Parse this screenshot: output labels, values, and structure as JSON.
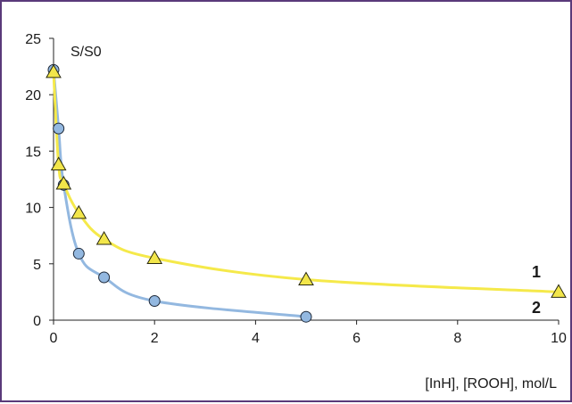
{
  "chart_data": {
    "type": "line",
    "title": "",
    "ylabel": "S/S0",
    "xlabel": "[InH], [ROOH], mol/L",
    "xlim": [
      0,
      10
    ],
    "ylim": [
      0,
      25
    ],
    "xticks": [
      "0",
      "2",
      "4",
      "6",
      "8",
      "10"
    ],
    "yticks": [
      "0",
      "5",
      "10",
      "15",
      "20",
      "25"
    ],
    "grid": false,
    "series": [
      {
        "name": "1",
        "color": "#f5e94a",
        "marker": "triangle",
        "marker_fill": "#f2e64a",
        "x": [
          0,
          0.1,
          0.2,
          0.5,
          1,
          2,
          5,
          10
        ],
        "y": [
          22,
          13.8,
          12.1,
          9.5,
          7.2,
          5.5,
          3.6,
          2.5
        ]
      },
      {
        "name": "2",
        "color": "#93b8e0",
        "marker": "circle",
        "marker_fill": "#93b8e0",
        "x": [
          0,
          0.1,
          0.2,
          0.5,
          1,
          2,
          5
        ],
        "y": [
          22.2,
          17,
          12,
          5.9,
          3.8,
          1.7,
          0.3
        ]
      }
    ]
  }
}
